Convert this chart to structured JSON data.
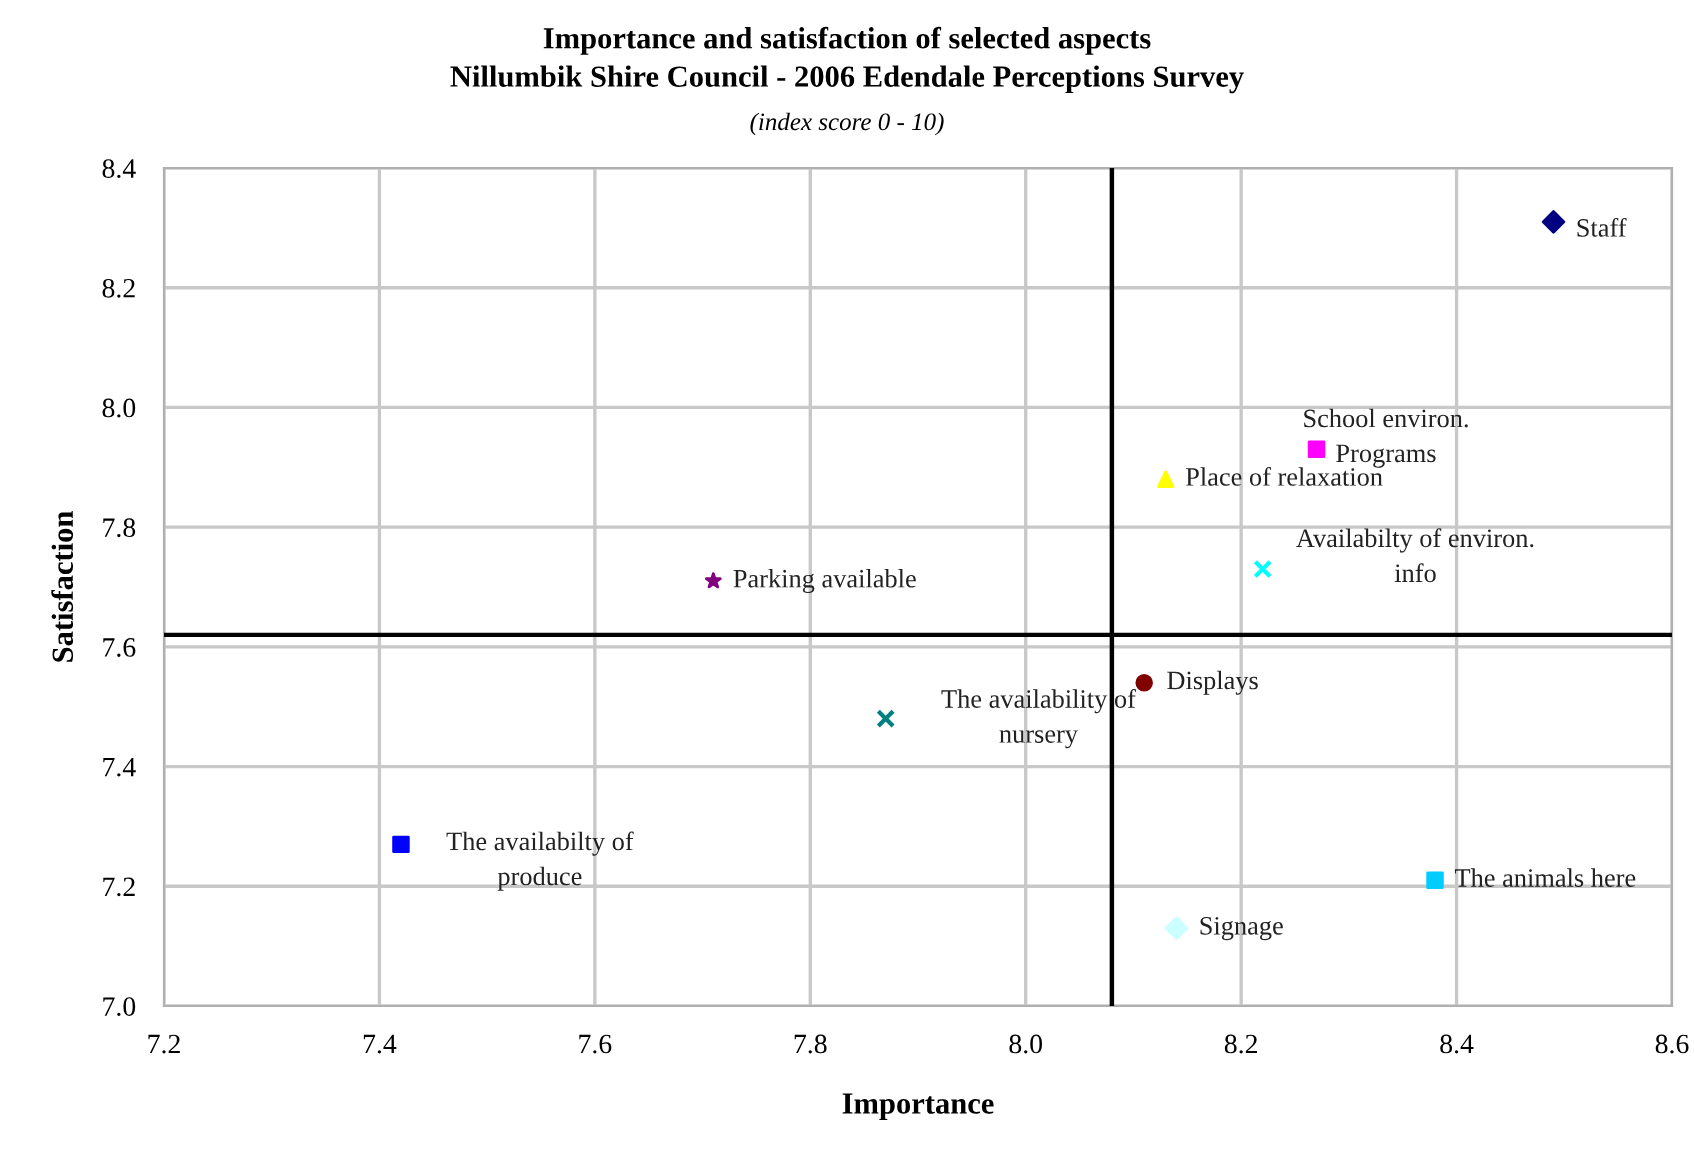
{
  "chart_data": {
    "type": "scatter",
    "title": "Importance and satisfaction of selected aspects\nNillumbik Shire Council - 2006 Edendale Perceptions Survey",
    "subtitle": "(index score 0 - 10)",
    "xlabel": "Importance",
    "ylabel": "Satisfaction",
    "xlim": [
      7.2,
      8.6
    ],
    "xticks": [
      {
        "value": 7.2,
        "label": "7.2"
      },
      {
        "value": 7.4,
        "label": "7.4"
      },
      {
        "value": 7.6,
        "label": "7.6"
      },
      {
        "value": 7.8,
        "label": "7.8"
      },
      {
        "value": 8.0,
        "label": "8.0"
      },
      {
        "value": 8.2,
        "label": "8.2"
      },
      {
        "value": 8.4,
        "label": "8.4"
      },
      {
        "value": 8.6,
        "label": "8.6"
      }
    ],
    "ylim": [
      7.0,
      8.4
    ],
    "yticks": [
      {
        "value": 7.0,
        "label": "7.0"
      },
      {
        "value": 7.2,
        "label": "7.2"
      },
      {
        "value": 7.4,
        "label": "7.4"
      },
      {
        "value": 7.6,
        "label": "7.6"
      },
      {
        "value": 7.8,
        "label": "7.8"
      },
      {
        "value": 8.0,
        "label": "8.0"
      },
      {
        "value": 8.2,
        "label": "8.2"
      },
      {
        "value": 8.4,
        "label": "8.4"
      }
    ],
    "grid": true,
    "ref_lines": [
      {
        "axis": "x",
        "value": 8.08,
        "color": "#000000"
      },
      {
        "axis": "y",
        "value": 7.62,
        "color": "#000000"
      }
    ],
    "series": [
      {
        "name": "Staff",
        "color": "#000080",
        "marker": "diamond",
        "x": [
          8.49
        ],
        "values": [
          8.31
        ]
      },
      {
        "name": "School environ.\nPrograms",
        "color": "#ff00ff",
        "marker": "square",
        "x": [
          8.27
        ],
        "values": [
          7.93
        ]
      },
      {
        "name": "Place of relaxation",
        "color": "#ffff00",
        "marker": "triangle",
        "x": [
          8.13
        ],
        "values": [
          7.88
        ]
      },
      {
        "name": "Availabilty of environ.\ninfo",
        "color": "#00ffff",
        "marker": "cross",
        "x": [
          8.22
        ],
        "values": [
          7.73
        ]
      },
      {
        "name": "Parking available",
        "color": "#800080",
        "marker": "star",
        "x": [
          7.71
        ],
        "values": [
          7.71
        ]
      },
      {
        "name": "Displays",
        "color": "#800000",
        "marker": "circle",
        "x": [
          8.11
        ],
        "values": [
          7.54
        ]
      },
      {
        "name": "The availability of\nnursery",
        "color": "#008080",
        "marker": "cross",
        "x": [
          7.87
        ],
        "values": [
          7.48
        ]
      },
      {
        "name": "The availabilty of\nproduce",
        "color": "#0000ff",
        "marker": "square",
        "x": [
          7.42
        ],
        "values": [
          7.27
        ]
      },
      {
        "name": "The animals here",
        "color": "#00ccff",
        "marker": "square",
        "x": [
          8.38
        ],
        "values": [
          7.21
        ]
      },
      {
        "name": "Signage",
        "color": "#ccffff",
        "marker": "diamond",
        "x": [
          8.14
        ],
        "values": [
          7.13
        ]
      }
    ]
  }
}
